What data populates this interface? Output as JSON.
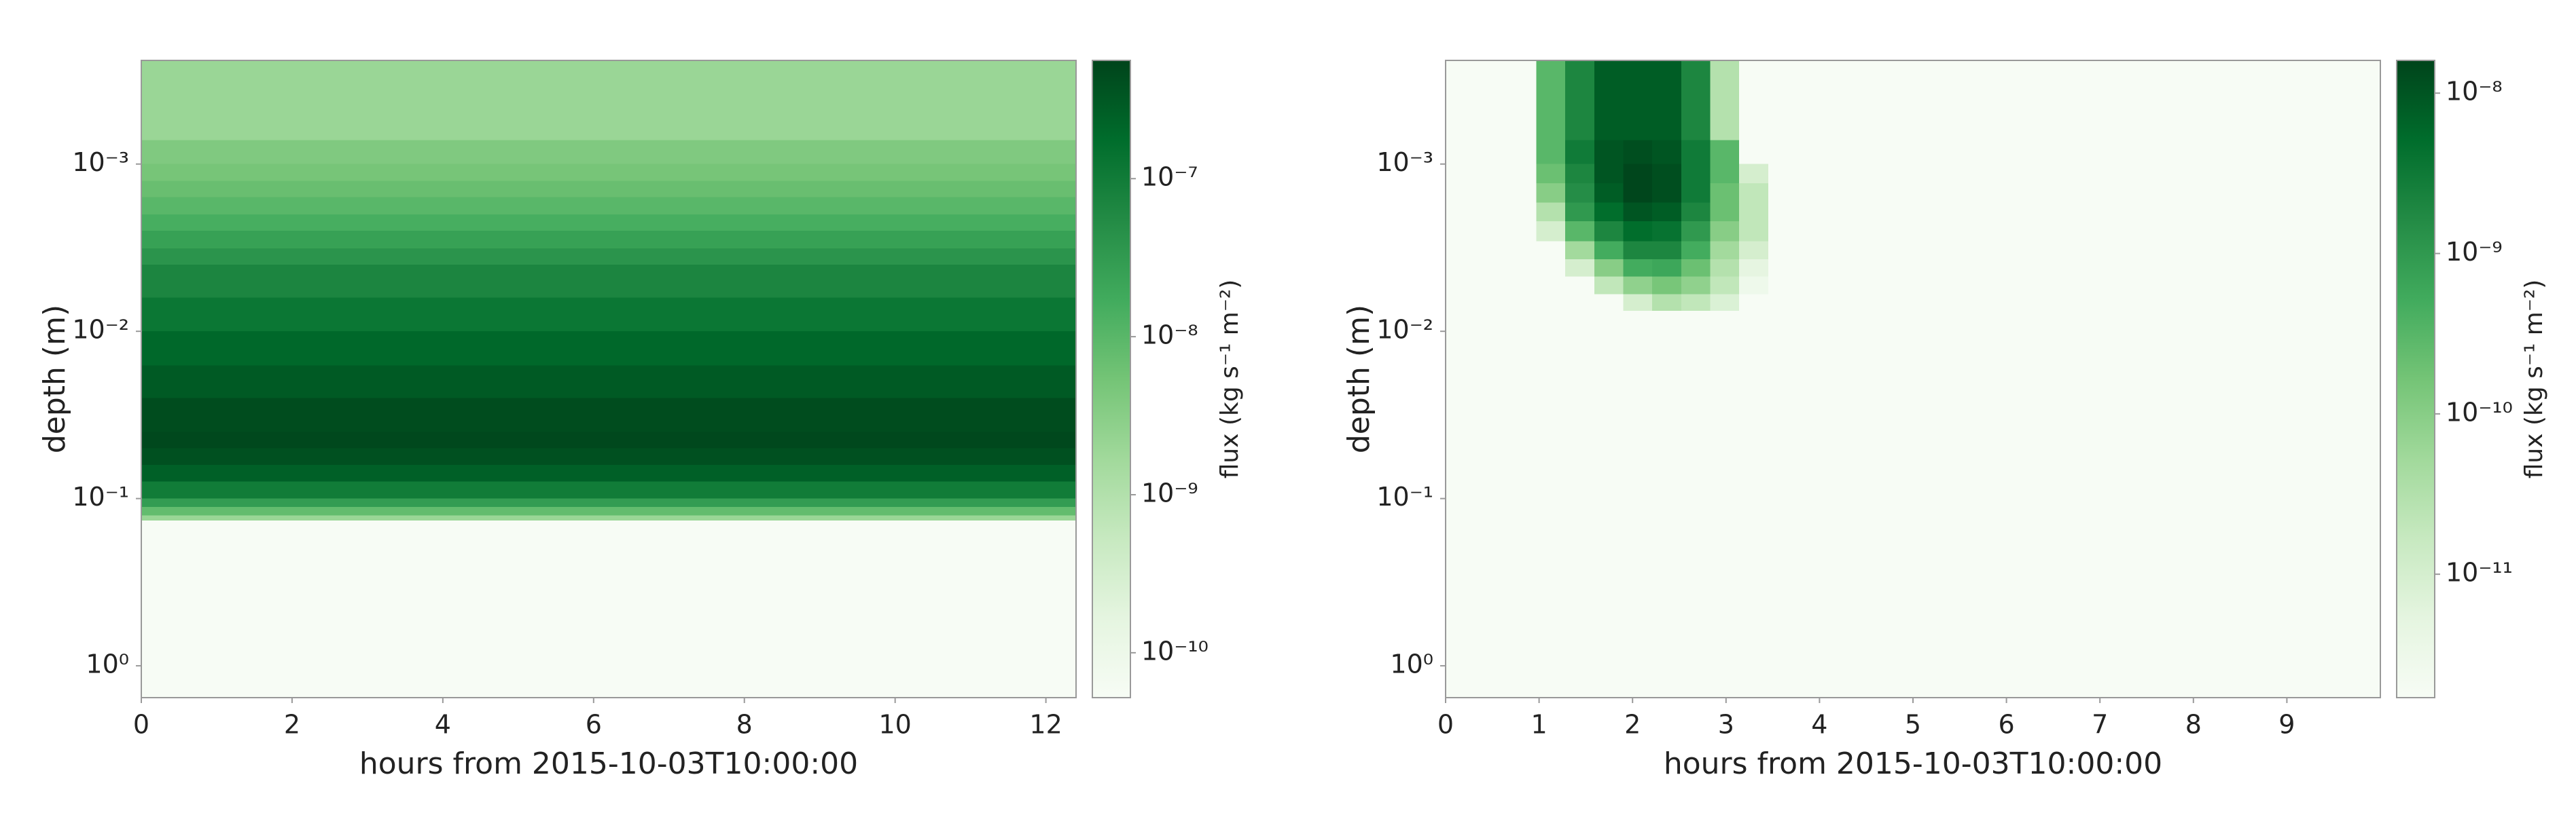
{
  "chart_data": [
    {
      "type": "heatmap",
      "xlabel": "hours from 2015-10-03T10:00:00",
      "ylabel": "depth (m)",
      "xlim": [
        0,
        12.4
      ],
      "xticks": [
        0,
        2,
        4,
        6,
        8,
        10,
        12
      ],
      "ylim": [
        0.00024,
        1.55
      ],
      "ylog": true,
      "y_inverted": true,
      "yticks": [
        {
          "value": 0.001,
          "label": "10⁻³"
        },
        {
          "value": 0.01,
          "label": "10⁻²"
        },
        {
          "value": 0.1,
          "label": "10⁻¹"
        },
        {
          "value": 1,
          "label": "10⁰"
        }
      ],
      "x_edges": [
        0,
        12.4
      ],
      "y_edges": [
        0.00024,
        0.00072,
        0.001,
        0.00126,
        0.00158,
        0.002,
        0.0025,
        0.0032,
        0.004,
        0.0063,
        0.01,
        0.016,
        0.025,
        0.04,
        0.05,
        0.063,
        0.079,
        0.1,
        0.112,
        0.126,
        0.135,
        1.55
      ],
      "z": [
        [
          2e-09
        ],
        [
          4e-09
        ],
        [
          5e-09
        ],
        [
          7e-09
        ],
        [
          1e-08
        ],
        [
          1.5e-08
        ],
        [
          2.5e-08
        ],
        [
          4e-08
        ],
        [
          7e-08
        ],
        [
          1.2e-07
        ],
        [
          2e-07
        ],
        [
          3e-07
        ],
        [
          4.5e-07
        ],
        [
          5e-07
        ],
        [
          4e-07
        ],
        [
          2.5e-07
        ],
        [
          1e-07
        ],
        [
          3e-08
        ],
        [
          8e-09
        ],
        [
          2e-09
        ],
        [
          5.2e-11
        ]
      ],
      "colormap": [
        "#f7fcf5",
        "#e5f5e0",
        "#c7e9c0",
        "#a1d99b",
        "#74c476",
        "#41ab5d",
        "#238b45",
        "#006d2c",
        "#00441b"
      ],
      "colorbar": {
        "label": "flux (kg s⁻¹ m⁻²)",
        "clim": [
          5.2e-11,
          5.6e-07
        ],
        "log": true,
        "ticks": [
          {
            "value": 1e-10,
            "label": "10⁻¹⁰"
          },
          {
            "value": 1e-09,
            "label": "10⁻⁹"
          },
          {
            "value": 1e-08,
            "label": "10⁻⁸"
          },
          {
            "value": 1e-07,
            "label": "10⁻⁷"
          }
        ]
      }
    },
    {
      "type": "heatmap",
      "xlabel": "hours from 2015-10-03T10:00:00",
      "ylabel": "depth (m)",
      "xlim": [
        0,
        10
      ],
      "xticks": [
        0,
        1,
        2,
        3,
        4,
        5,
        6,
        7,
        8,
        9
      ],
      "ylim": [
        0.00024,
        1.55
      ],
      "ylog": true,
      "y_inverted": true,
      "yticks": [
        {
          "value": 0.001,
          "label": "10⁻³"
        },
        {
          "value": 0.01,
          "label": "10⁻²"
        },
        {
          "value": 0.1,
          "label": "10⁻¹"
        },
        {
          "value": 1,
          "label": "10⁰"
        }
      ],
      "x_edges": [
        0.97,
        1.28,
        1.59,
        1.9,
        2.21,
        2.52,
        2.83,
        3.14,
        3.45
      ],
      "y_edges": [
        0.00024,
        0.00072,
        0.001,
        0.0013,
        0.0017,
        0.0022,
        0.0029,
        0.0037,
        0.0047,
        0.006,
        0.0075
      ],
      "z": [
        [
          3e-10,
          2e-09,
          8e-09,
          8e-09,
          8e-09,
          2e-09,
          3e-11,
          1.7e-12
        ],
        [
          3e-10,
          3e-09,
          1e-08,
          1.2e-08,
          1e-08,
          3e-09,
          3e-10,
          1.7e-12
        ],
        [
          2e-10,
          2e-09,
          1e-08,
          1.5e-08,
          1.2e-08,
          3e-09,
          3e-10,
          1e-11
        ],
        [
          1e-10,
          1.5e-09,
          8e-09,
          1.5e-08,
          1.2e-08,
          3e-09,
          2e-10,
          2e-11
        ],
        [
          3e-11,
          1e-09,
          5e-09,
          1e-08,
          8e-09,
          2e-09,
          2e-10,
          2e-11
        ],
        [
          1e-11,
          3e-10,
          2e-09,
          5e-09,
          4e-09,
          1e-09,
          1e-10,
          2e-11
        ],
        [
          1.7e-12,
          5e-11,
          5e-10,
          2e-09,
          2e-09,
          5e-10,
          5e-11,
          1e-11
        ],
        [
          1.7e-12,
          1e-11,
          1e-10,
          5e-10,
          6e-10,
          2e-10,
          3e-11,
          5e-12
        ],
        [
          1.7e-12,
          1.7e-12,
          2e-11,
          8e-11,
          1.5e-10,
          8e-11,
          2e-11,
          3e-12
        ],
        [
          1.7e-12,
          1.7e-12,
          1.7e-12,
          1e-11,
          3e-11,
          2e-11,
          8e-12,
          1.7e-12
        ]
      ],
      "colormap": [
        "#f7fcf5",
        "#e5f5e0",
        "#c7e9c0",
        "#a1d99b",
        "#74c476",
        "#41ab5d",
        "#238b45",
        "#006d2c",
        "#00441b"
      ],
      "colorbar": {
        "label": "flux (kg s⁻¹ m⁻²)",
        "clim": [
          1.7e-12,
          1.6e-08
        ],
        "log": true,
        "ticks": [
          {
            "value": 1e-11,
            "label": "10⁻¹¹"
          },
          {
            "value": 1e-10,
            "label": "10⁻¹⁰"
          },
          {
            "value": 1e-09,
            "label": "10⁻⁹"
          },
          {
            "value": 1e-08,
            "label": "10⁻⁸"
          }
        ]
      }
    }
  ]
}
